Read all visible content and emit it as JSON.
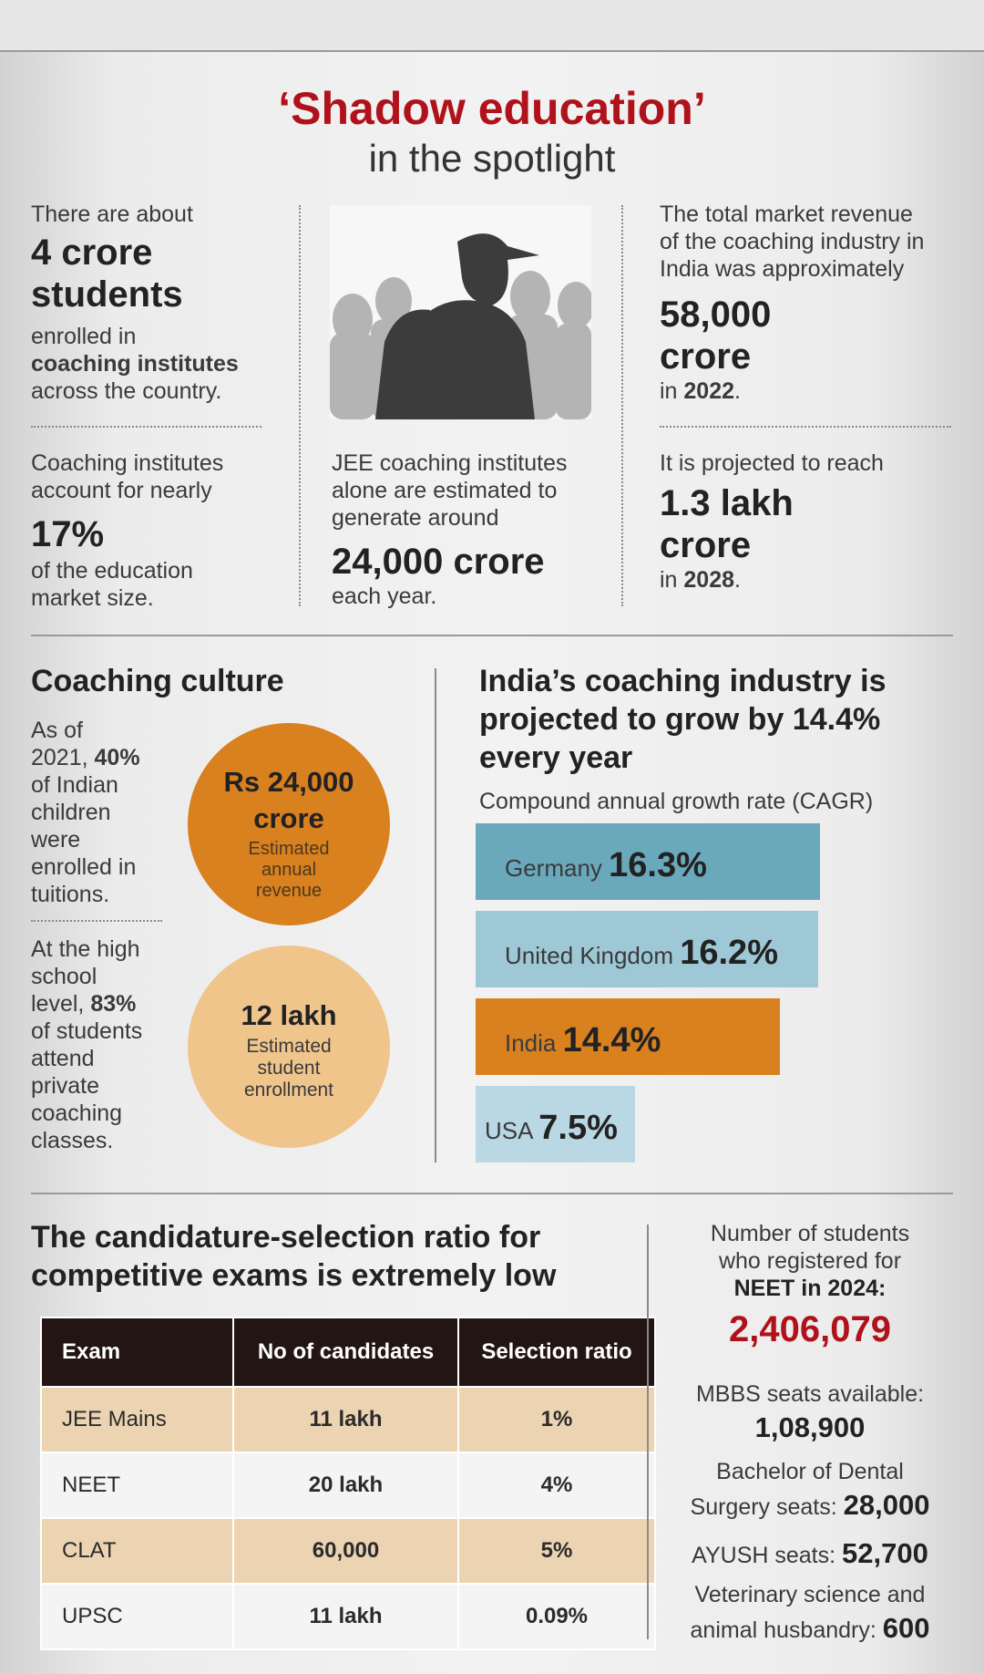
{
  "header": {
    "title": "‘Shadow education’",
    "subtitle": "in the spotlight"
  },
  "stats": {
    "students": {
      "pre": "There are about",
      "big1": "4 crore",
      "big2": "students",
      "post1": "enrolled in",
      "post_bold": "coaching institutes",
      "post2": "across the country."
    },
    "revenue": {
      "pre1": "The total market revenue",
      "pre2": "of the coaching industry in",
      "pre3": "India was approximately",
      "big1": "58,000",
      "big2": "crore",
      "post_pre": "in ",
      "post_year": "2022",
      "post_dot": "."
    },
    "share": {
      "pre1": "Coaching institutes",
      "pre2": "account for nearly",
      "big": "17%",
      "post1": "of the education",
      "post2": "market size."
    },
    "jee": {
      "pre1": "JEE coaching institutes",
      "pre2": "alone are estimated to",
      "pre3": "generate around",
      "big": "24,000 crore",
      "post": "each year."
    },
    "projection": {
      "pre": "It is projected to reach",
      "big1": "1.3 lakh",
      "big2": "crore",
      "post_pre": "in ",
      "post_year": "2028",
      "post_dot": "."
    }
  },
  "coaching_culture": {
    "heading": "Coaching culture",
    "fact1": {
      "l1": "As of",
      "l2_pre": "2021, ",
      "l2_bold": "40%",
      "l3": "of Indian",
      "l4": "children",
      "l5": "were",
      "l6": "enrolled in",
      "l7": "tuitions."
    },
    "fact2": {
      "l1": "At the high",
      "l2": "school",
      "l3_pre": "level, ",
      "l3_bold": "83%",
      "l4": "of students",
      "l5": "attend",
      "l6": "private",
      "l7": "coaching",
      "l8": "classes."
    },
    "circle1": {
      "value1": "Rs 24,000",
      "value2": "crore",
      "cap1": "Estimated",
      "cap2": "annual",
      "cap3": "revenue",
      "color": "#d9801f"
    },
    "circle2": {
      "value": "12 lakh",
      "cap1": "Estimated",
      "cap2": "student",
      "cap3": "enrollment",
      "color": "#f0c58c"
    }
  },
  "chart_data": {
    "type": "bar",
    "title": "India’s coaching industry is projected to grow by 14.4% every year",
    "title_lines": [
      "India’s coaching industry is",
      "projected to grow by 14.4%",
      "every year"
    ],
    "subtitle": "Compound annual growth rate (CAGR)",
    "orientation": "horizontal",
    "unit": "%",
    "categories": [
      "Germany",
      "United Kingdom",
      "India",
      "USA"
    ],
    "values": [
      16.3,
      16.2,
      14.4,
      7.5
    ],
    "value_labels": [
      "16.3%",
      "16.2%",
      "14.4%",
      "7.5%"
    ],
    "colors": [
      "#6aa9bc",
      "#9fc8d6",
      "#d9801f",
      "#b9d8e3"
    ],
    "xlim": [
      0,
      16.3
    ]
  },
  "ratio": {
    "heading1": "The candidature-selection ratio for",
    "heading2": "competitive exams is extremely low",
    "columns": [
      "Exam",
      "No of candidates",
      "Selection ratio"
    ],
    "rows": [
      [
        "JEE Mains",
        "11 lakh",
        "1%"
      ],
      [
        "NEET",
        "20 lakh",
        "4%"
      ],
      [
        "CLAT",
        "60,000",
        "5%"
      ],
      [
        "UPSC",
        "11 lakh",
        "0.09%"
      ]
    ],
    "colors": {
      "header": "#231513",
      "odd": "#ecd4b2",
      "even": "#f4f4f4"
    }
  },
  "neet": {
    "l1": "Number of students",
    "l2": "who registered for",
    "l3": "NEET in 2024:",
    "big": "2,406,079",
    "mbbs_label": "MBBS seats available:",
    "mbbs_value": "1,08,900",
    "bds_l1": "Bachelor of Dental",
    "bds_l2": "Surgery seats: ",
    "bds_value": "28,000",
    "ayush_label": "AYUSH seats: ",
    "ayush_value": "52,700",
    "vet_l1": "Veterinary science and",
    "vet_l2": "animal husbandry: ",
    "vet_value": "600"
  }
}
